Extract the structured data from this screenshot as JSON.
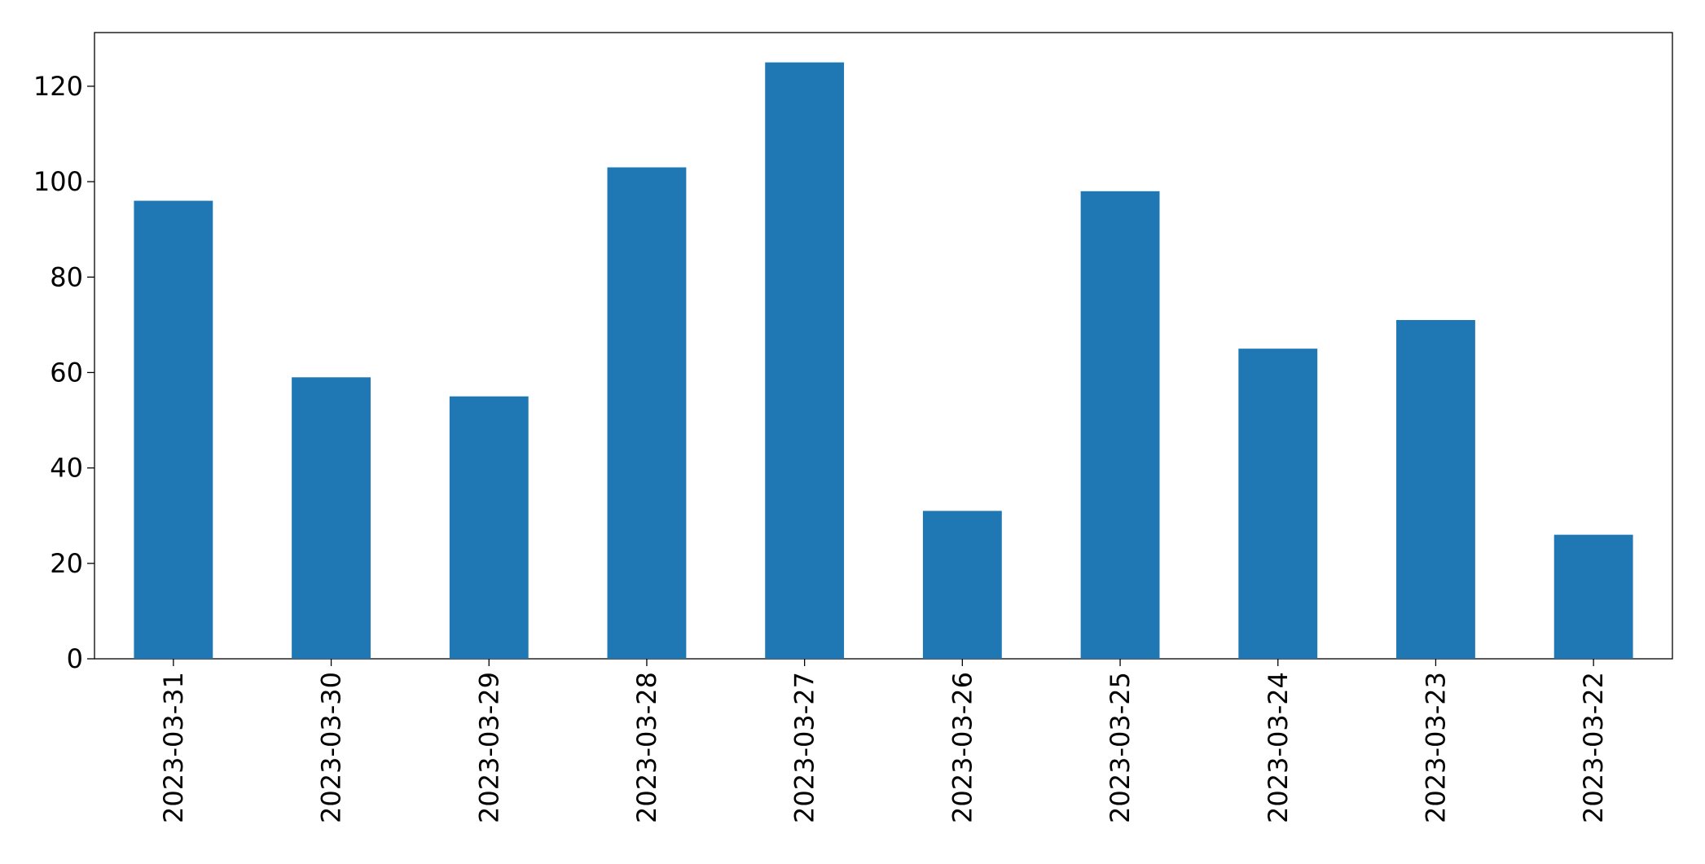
{
  "chart_data": {
    "type": "bar",
    "categories": [
      "2023-03-31",
      "2023-03-30",
      "2023-03-29",
      "2023-03-28",
      "2023-03-27",
      "2023-03-26",
      "2023-03-25",
      "2023-03-24",
      "2023-03-23",
      "2023-03-22"
    ],
    "values": [
      96,
      59,
      55,
      103,
      125,
      31,
      98,
      65,
      71,
      26
    ],
    "color": "#1f77b4",
    "ylim": [
      0,
      131.25
    ],
    "yticks": [
      0,
      20,
      40,
      60,
      80,
      100,
      120
    ],
    "grid": false
  }
}
